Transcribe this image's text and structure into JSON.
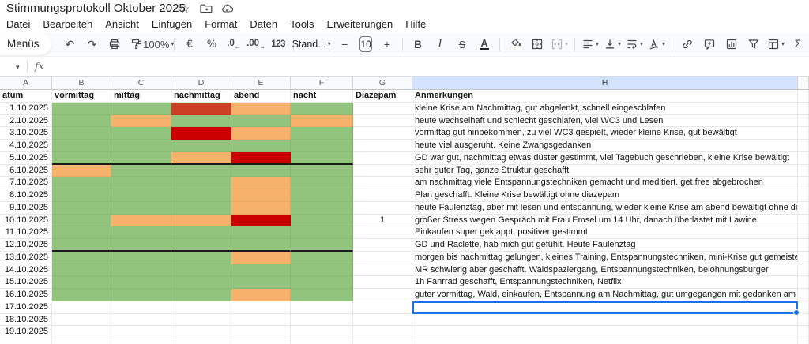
{
  "titlebar": {
    "title": "Stimmungsprotokoll Oktober 2025",
    "icons": {
      "star": "star-icon",
      "move": "folder-move-icon",
      "cloud": "cloud-status-icon"
    },
    "star_glyph": "☆"
  },
  "menubar": {
    "items": [
      {
        "id": "datei",
        "label": "Datei"
      },
      {
        "id": "bearbeiten",
        "label": "Bearbeiten"
      },
      {
        "id": "ansicht",
        "label": "Ansicht"
      },
      {
        "id": "einfuegen",
        "label": "Einfügen"
      },
      {
        "id": "format",
        "label": "Format"
      },
      {
        "id": "daten",
        "label": "Daten"
      },
      {
        "id": "tools",
        "label": "Tools"
      },
      {
        "id": "erweiterungen",
        "label": "Erweiterungen"
      },
      {
        "id": "hilfe",
        "label": "Hilfe"
      }
    ]
  },
  "toolbar": {
    "menus_label": "Menüs",
    "undo_glyph": "↶",
    "redo_glyph": "↷",
    "zoom_value": "100%",
    "currency": "€",
    "percent": "%",
    "decrease_decimals": ".0",
    "increase_decimals": ".00",
    "more_formats": "123",
    "font_name": "Stand...",
    "decrease_size": "−",
    "font_size": "10",
    "increase_size": "+",
    "bold": "B",
    "italic": "I",
    "strikethrough": "S",
    "text_color": "A",
    "functions": "Σ",
    "caret_glyph": "▾"
  },
  "formula_bar": {
    "fx_label": "fx",
    "name_caret": "▾"
  },
  "grid": {
    "column_letters": [
      "A",
      "B",
      "C",
      "D",
      "E",
      "F",
      "G",
      "H",
      ""
    ],
    "selected_column": "H",
    "header_row": {
      "a": "atum",
      "b": "vormittag",
      "c": "mittag",
      "d": "nachmittag",
      "e": "abend",
      "f": "nacht",
      "g": "Diazepam",
      "h": "Anmerkungen"
    },
    "colors": {
      "green": "#93c47d",
      "orange": "#f6b26b",
      "red": "#cc0000",
      "brick": "#cc4125",
      "selection": "#1a73e8",
      "selected_header_bg": "#d3e3fd"
    },
    "rows": [
      {
        "date": "1.10.2025",
        "moods": [
          "green",
          "green",
          "brick",
          "orange",
          "green"
        ],
        "diazepam": "",
        "note": "kleine Krise am Nachmittag, gut abgelenkt, schnell eingeschlafen"
      },
      {
        "date": "2.10.2025",
        "moods": [
          "green",
          "orange",
          "green",
          "green",
          "orange"
        ],
        "diazepam": "",
        "note": "heute wechselhaft und schlecht geschlafen, viel WC3 und Lesen"
      },
      {
        "date": "3.10.2025",
        "moods": [
          "green",
          "green",
          "red",
          "orange",
          "green"
        ],
        "diazepam": "",
        "note": "vormittag gut hinbekommen, zu viel WC3 gespielt, wieder kleine Krise, gut bewältigt"
      },
      {
        "date": "4.10.2025",
        "moods": [
          "green",
          "green",
          "green",
          "green",
          "green"
        ],
        "diazepam": "",
        "note": "heute viel ausgeruht. Keine Zwangsgedanken"
      },
      {
        "date": "5.10.2025",
        "moods": [
          "green",
          "green",
          "orange",
          "red",
          "green"
        ],
        "diazepam": "",
        "note": "GD war gut, nachmittag etwas düster gestimmt, viel Tagebuch geschrieben, kleine Krise bewältigt",
        "thick_bottom": true
      },
      {
        "date": "6.10.2025",
        "moods": [
          "orange",
          "green",
          "green",
          "green",
          "green"
        ],
        "diazepam": "",
        "note": "sehr guter Tag, ganze Struktur geschafft"
      },
      {
        "date": "7.10.2025",
        "moods": [
          "green",
          "green",
          "green",
          "orange",
          "green"
        ],
        "diazepam": "",
        "note": "am nachmittag viele Entspannungstechniken gemacht und meditiert. get free abgebrochen"
      },
      {
        "date": "8.10.2025",
        "moods": [
          "green",
          "green",
          "green",
          "orange",
          "green"
        ],
        "diazepam": "",
        "note": "Plan geschafft. Kleine Krise bewältigt ohne diazepam"
      },
      {
        "date": "9.10.2025",
        "moods": [
          "green",
          "green",
          "green",
          "orange",
          "green"
        ],
        "diazepam": "",
        "note": "heute Faulenztag, aber mit lesen und entspannung, wieder kleine Krise am abend bewältigt ohne diazepam"
      },
      {
        "date": "10.10.2025",
        "moods": [
          "green",
          "orange",
          "orange",
          "red",
          "green"
        ],
        "diazepam": "1",
        "note": "großer Stress wegen Gespräch mit Frau Emsel um 14 Uhr, danach überlastet mit Lawine"
      },
      {
        "date": "11.10.2025",
        "moods": [
          "green",
          "green",
          "green",
          "green",
          "green"
        ],
        "diazepam": "",
        "note": "Einkaufen super geklappt, positiver gestimmt"
      },
      {
        "date": "12.10.2025",
        "moods": [
          "green",
          "green",
          "green",
          "green",
          "green"
        ],
        "diazepam": "",
        "note": "GD und Raclette, hab mich gut gefühlt. Heute Faulenztag",
        "thick_bottom": true
      },
      {
        "date": "13.10.2025",
        "moods": [
          "green",
          "green",
          "green",
          "orange",
          "green"
        ],
        "diazepam": "",
        "note": "morgen bis nachmittag gelungen, kleines Training, Entspannungstechniken, mini-Krise gut gemeistert"
      },
      {
        "date": "14.10.2025",
        "moods": [
          "green",
          "green",
          "green",
          "green",
          "green"
        ],
        "diazepam": "",
        "note": "MR schwierig aber geschafft. Waldspaziergang, Entspannungstechniken, belohnungsburger"
      },
      {
        "date": "15.10.2025",
        "moods": [
          "green",
          "green",
          "green",
          "green",
          "green"
        ],
        "diazepam": "",
        "note": "1h Fahrrad geschafft, Entspannungstechniken, Netflix"
      },
      {
        "date": "16.10.2025",
        "moods": [
          "green",
          "green",
          "green",
          "orange",
          "green"
        ],
        "diazepam": "",
        "note": "guter vormittag, Wald, einkaufen, Entspannung am Nachmittag, gut umgegangen mit gedanken am abend"
      },
      {
        "date": "17.10.2025",
        "moods": [
          "",
          "",
          "",
          "",
          ""
        ],
        "diazepam": "",
        "note": "",
        "selected": true
      },
      {
        "date": "18.10.2025",
        "moods": [
          "",
          "",
          "",
          "",
          ""
        ],
        "diazepam": "",
        "note": ""
      },
      {
        "date": "19.10.2025",
        "moods": [
          "",
          "",
          "",
          "",
          ""
        ],
        "diazepam": "",
        "note": ""
      },
      {
        "date": "",
        "moods": [
          "",
          "",
          "",
          "",
          ""
        ],
        "diazepam": "",
        "note": ""
      }
    ]
  }
}
